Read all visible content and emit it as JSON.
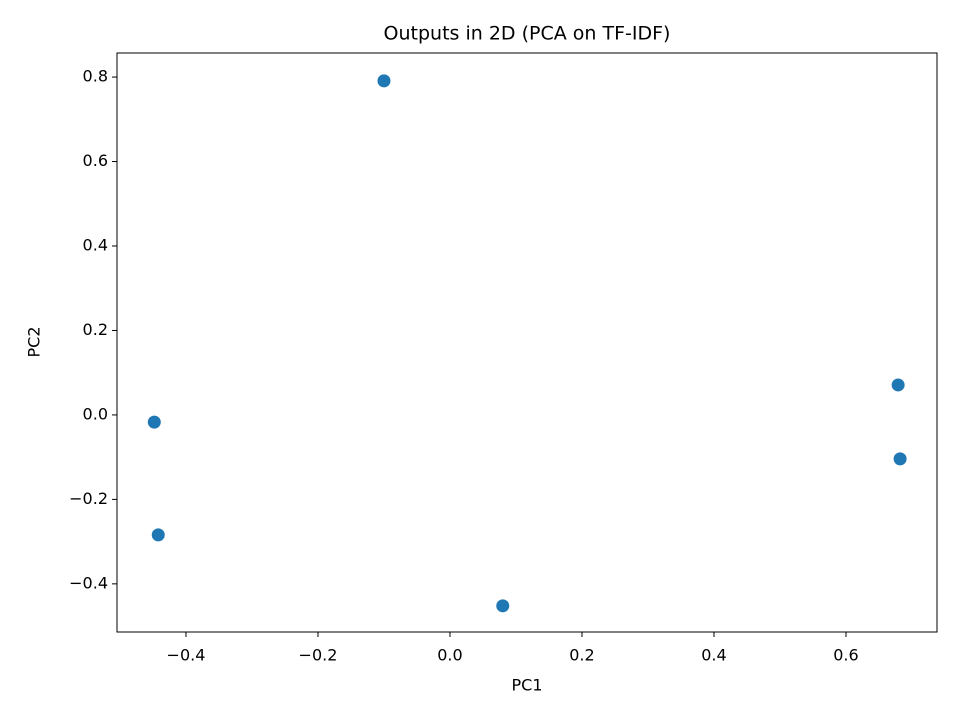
{
  "chart_data": {
    "type": "scatter",
    "title": "Outputs in 2D (PCA on TF-IDF)",
    "x_label": "PC1",
    "y_label": "PC2",
    "series": [
      {
        "color": "#1f77b4",
        "x": [
          -0.1,
          -0.448,
          -0.442,
          0.08,
          0.679,
          0.682
        ],
        "values": [
          0.791,
          -0.017,
          -0.284,
          -0.452,
          0.071,
          -0.104
        ]
      }
    ],
    "xlim": [
      -0.5045,
      0.7379
    ],
    "xticks": [
      {
        "value": -0.4,
        "label": "−0.4"
      },
      {
        "value": -0.2,
        "label": "−0.2"
      },
      {
        "value": 0,
        "label": "0.0"
      },
      0.2,
      0.4,
      0.6
    ],
    "ylim": [
      -0.514,
      0.857
    ],
    "yticks": [
      {
        "value": -0.4,
        "label": "−0.4"
      },
      {
        "value": -0.2,
        "label": "−0.2"
      },
      {
        "value": 0,
        "label": "0.0"
      },
      0.2,
      0.4,
      0.6,
      0.8
    ],
    "grid": false
  }
}
